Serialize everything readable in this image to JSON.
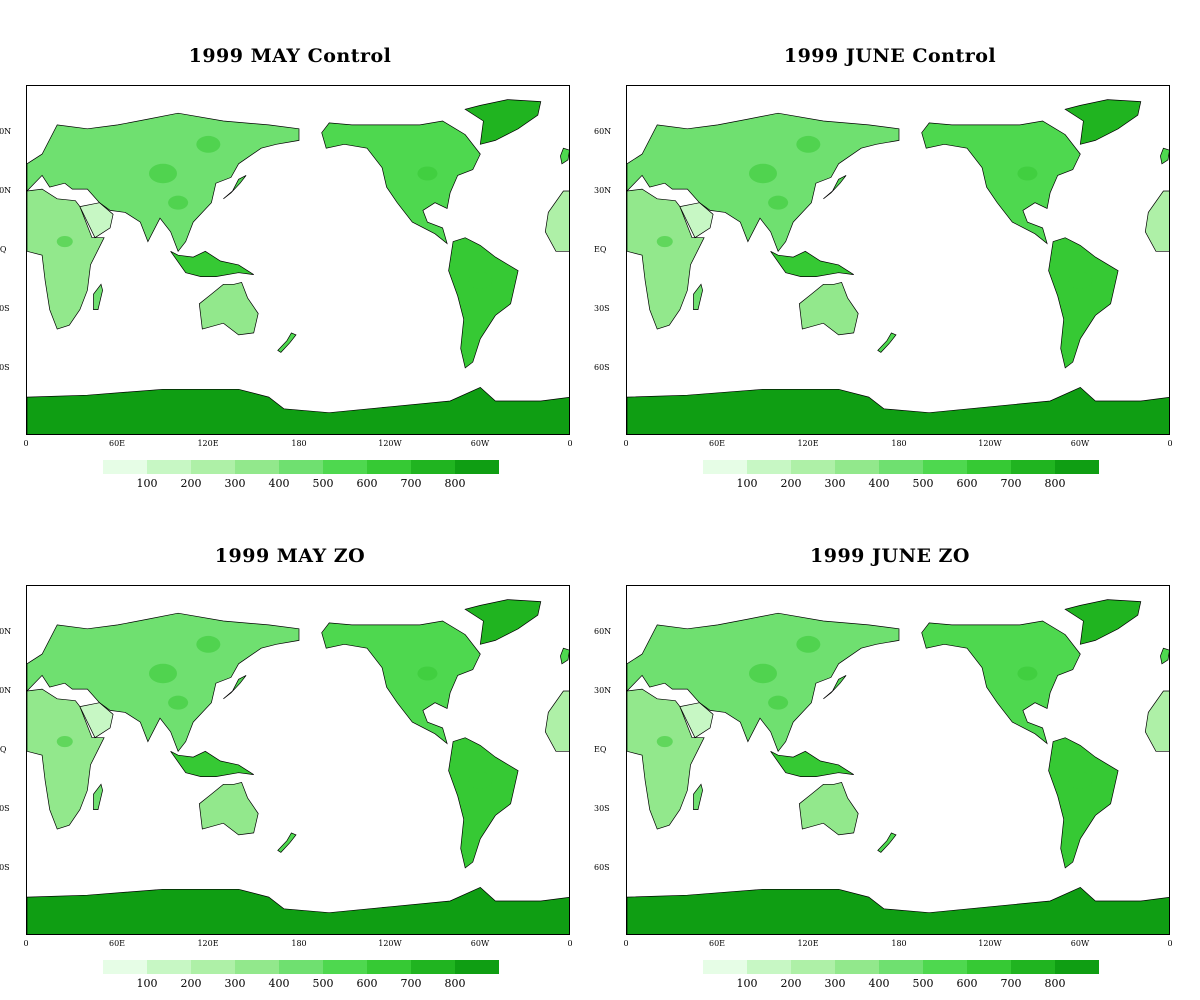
{
  "panels": [
    {
      "title": "1999 MAY Control"
    },
    {
      "title": "1999 JUNE Control"
    },
    {
      "title": "1999 MAY ZO"
    },
    {
      "title": "1999 JUNE ZO"
    }
  ],
  "lat_labels": [
    "60N",
    "30N",
    "EQ",
    "30S",
    "60S"
  ],
  "lon_labels": [
    "0",
    "60E",
    "120E",
    "180",
    "120W",
    "60W",
    "0"
  ],
  "colorbar": {
    "colors": [
      "#e6fde6",
      "#c7f7c4",
      "#aef0a7",
      "#92e88c",
      "#6fe070",
      "#4ed84f",
      "#36c934",
      "#20b420",
      "#0f9e13"
    ],
    "labels": [
      "100",
      "200",
      "300",
      "400",
      "500",
      "600",
      "700",
      "800"
    ]
  }
}
